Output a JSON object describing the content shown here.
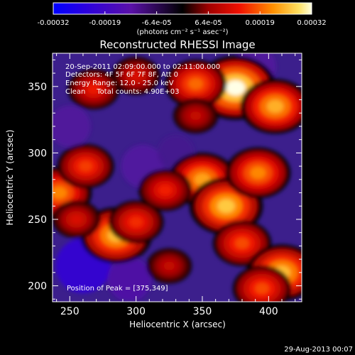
{
  "chart_data": {
    "type": "heatmap",
    "title": "Reconstructed RHESSI Image",
    "xlabel": "Heliocentric X (arcsec)",
    "ylabel": "Heliocentric Y (arcsec)",
    "xlim": [
      237,
      425
    ],
    "ylim": [
      188,
      375
    ],
    "x_ticks": [
      250,
      300,
      350,
      400
    ],
    "y_ticks": [
      200,
      250,
      300,
      350
    ],
    "colorbar": {
      "range": [
        -0.00032,
        0.00032
      ],
      "ticks": [
        "-0.00032",
        "-0.00019",
        "-6.4e-05",
        "6.4e-05",
        "0.00019",
        "0.00032"
      ],
      "label": "(photons cm⁻² s⁻¹ asec⁻²)"
    },
    "annotations": {
      "time": "20-Sep-2011 02:09:00.000 to 02:11:00.000",
      "detectors": "Detectors: 4F 5F 6F 7F 8F, Att 0",
      "energy": "Energy Range: 12.0 - 25.0 keV",
      "method": "Clean     Total counts: 4.90E+03",
      "peak": "Position of Peak = [375,349]"
    },
    "footer_date": "29-Aug-2013 00:07",
    "bright_regions": [
      {
        "x": 375,
        "y": 349,
        "value": 0.00032
      },
      {
        "x": 405,
        "y": 335,
        "value": 0.00025
      },
      {
        "x": 345,
        "y": 352,
        "value": 0.0002
      },
      {
        "x": 350,
        "y": 280,
        "value": 0.00024
      },
      {
        "x": 368,
        "y": 260,
        "value": 0.00027
      },
      {
        "x": 392,
        "y": 285,
        "value": 0.00022
      },
      {
        "x": 380,
        "y": 232,
        "value": 0.00018
      },
      {
        "x": 410,
        "y": 210,
        "value": 0.00026
      },
      {
        "x": 395,
        "y": 198,
        "value": 0.00018
      },
      {
        "x": 285,
        "y": 238,
        "value": 0.00026
      },
      {
        "x": 300,
        "y": 248,
        "value": 0.00016
      },
      {
        "x": 242,
        "y": 270,
        "value": 0.00022
      },
      {
        "x": 262,
        "y": 290,
        "value": 0.00017
      },
      {
        "x": 255,
        "y": 250,
        "value": 0.00012
      },
      {
        "x": 322,
        "y": 272,
        "value": 0.00015
      },
      {
        "x": 325,
        "y": 215,
        "value": 0.0001
      },
      {
        "x": 300,
        "y": 358,
        "value": 0.00012
      },
      {
        "x": 268,
        "y": 348,
        "value": 0.00014
      },
      {
        "x": 345,
        "y": 328,
        "value": 0.0001
      }
    ],
    "dark_regions": [
      {
        "x": 260,
        "y": 215,
        "value": -0.00022
      },
      {
        "x": 295,
        "y": 205,
        "value": -0.00014
      },
      {
        "x": 305,
        "y": 290,
        "value": -0.00013
      },
      {
        "x": 250,
        "y": 320,
        "value": -0.00012
      },
      {
        "x": 390,
        "y": 365,
        "value": -0.00012
      },
      {
        "x": 330,
        "y": 300,
        "value": -8e-05
      }
    ]
  }
}
